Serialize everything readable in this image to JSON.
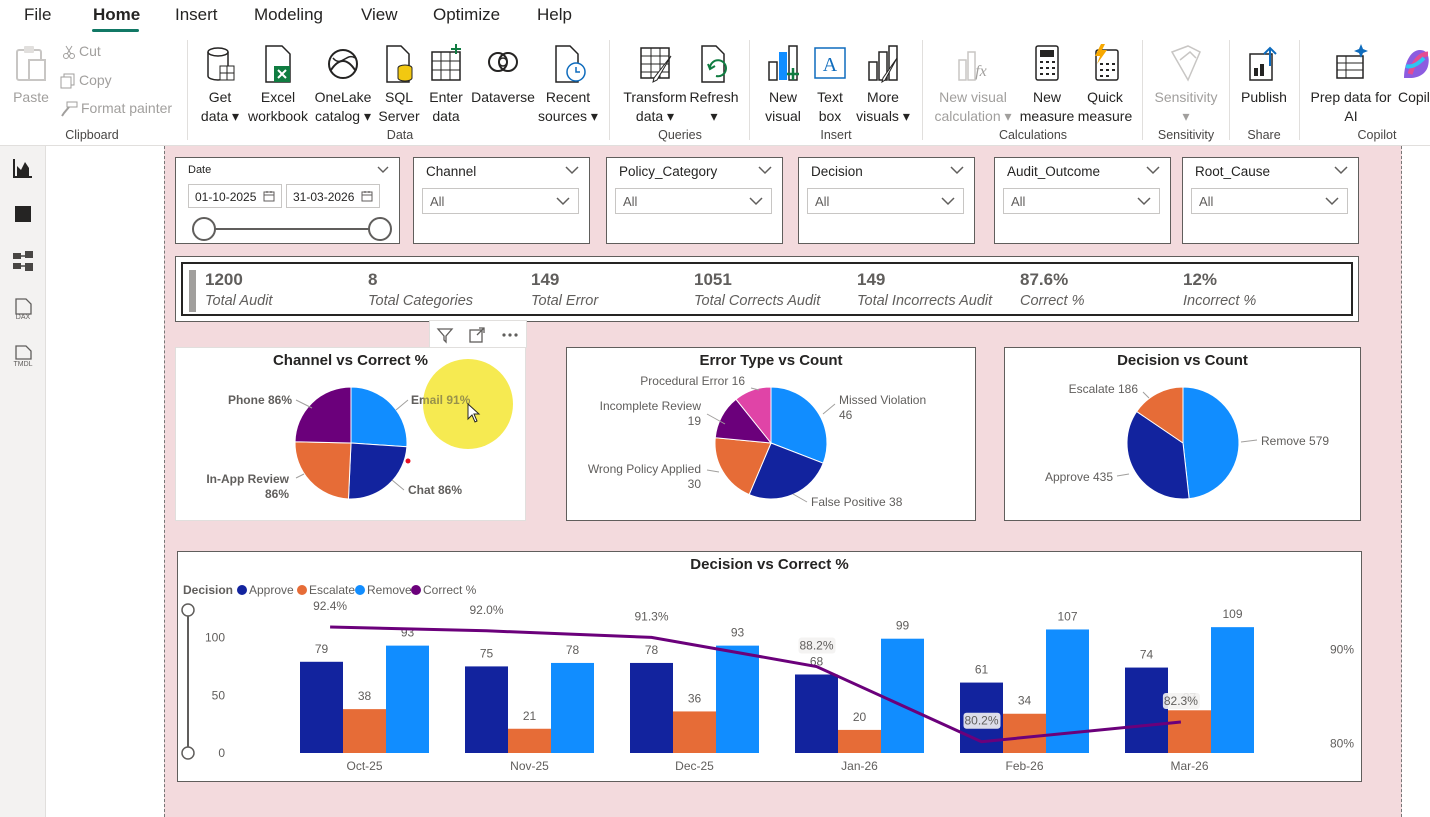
{
  "menu": {
    "items": [
      "File",
      "Home",
      "Insert",
      "Modeling",
      "View",
      "Optimize",
      "Help"
    ],
    "active": "Home"
  },
  "ribbon": {
    "clipboard": {
      "paste": "Paste",
      "cut": "Cut",
      "copy": "Copy",
      "format_painter": "Format painter",
      "group": "Clipboard"
    },
    "data": {
      "get_data": [
        "Get",
        "data"
      ],
      "excel": [
        "Excel",
        "workbook"
      ],
      "onelake": [
        "OneLake",
        "catalog"
      ],
      "sql": [
        "SQL",
        "Server"
      ],
      "enter": [
        "Enter",
        "data"
      ],
      "dataverse": "Dataverse",
      "recent": [
        "Recent",
        "sources"
      ],
      "group": "Data"
    },
    "queries": {
      "transform": [
        "Transform",
        "data"
      ],
      "refresh": "Refresh",
      "group": "Queries"
    },
    "insert": {
      "new_visual": [
        "New",
        "visual"
      ],
      "text_box": [
        "Text",
        "box"
      ],
      "more_visuals": [
        "More",
        "visuals"
      ],
      "group": "Insert"
    },
    "calculations": {
      "new_visual_calc": [
        "New visual",
        "calculation"
      ],
      "new_measure": [
        "New",
        "measure"
      ],
      "quick_measure": [
        "Quick",
        "measure"
      ],
      "group": "Calculations"
    },
    "sensitivity": {
      "label": "Sensitivity",
      "group": "Sensitivity"
    },
    "share": {
      "publish": "Publish",
      "group": "Share"
    },
    "copilot": {
      "prep": [
        "Prep data for",
        "AI"
      ],
      "copilot_label": "Copilo",
      "group": "Copilot"
    }
  },
  "rail": {
    "dax": "DAX",
    "tmdl": "TMDL"
  },
  "slicers": {
    "date": {
      "title": "Date",
      "start": "01-10-2025",
      "end": "31-03-2026"
    },
    "channel": {
      "title": "Channel",
      "value": "All"
    },
    "policy_category": {
      "title": "Policy_Category",
      "value": "All"
    },
    "decision": {
      "title": "Decision",
      "value": "All"
    },
    "audit_outcome": {
      "title": "Audit_Outcome",
      "value": "All"
    },
    "root_cause": {
      "title": "Root_Cause",
      "value": "All"
    }
  },
  "kpis": [
    {
      "value": "1200",
      "label": "Total Audit"
    },
    {
      "value": "8",
      "label": "Total Categories"
    },
    {
      "value": "149",
      "label": "Total Error"
    },
    {
      "value": "1051",
      "label": "Total Corrects Audit"
    },
    {
      "value": "149",
      "label": "Total Incorrects Audit"
    },
    {
      "value": "87.6%",
      "label": "Correct %"
    },
    {
      "value": "12%",
      "label": "Incorrect %"
    }
  ],
  "colors": {
    "approve": "#12239e",
    "escalate": "#e66c37",
    "remove": "#118dff",
    "correct": "#6b007b",
    "pink": "#e044a7",
    "canvas": "#f3dadd",
    "highlight": "#f5e633"
  },
  "chart_data": [
    {
      "type": "pie",
      "title": "Channel vs Correct %",
      "categories": [
        "Email",
        "Chat",
        "In-App Review",
        "Phone"
      ],
      "values": [
        91,
        86,
        86,
        86
      ],
      "labels": [
        "Email 91%",
        "Chat 86%",
        "In-App Review 86%",
        "Phone 86%"
      ]
    },
    {
      "type": "pie",
      "title": "Error Type vs Count",
      "categories": [
        "Missed Violation",
        "False Positive",
        "Wrong Policy Applied",
        "Incomplete Review",
        "Procedural Error"
      ],
      "values": [
        46,
        38,
        30,
        19,
        16
      ],
      "labels": [
        "Missed Violation 46",
        "False Positive 38",
        "Wrong Policy Applied 30",
        "Incomplete Review 19",
        "Procedural Error 16"
      ]
    },
    {
      "type": "pie",
      "title": "Decision vs Count",
      "categories": [
        "Remove",
        "Approve",
        "Escalate"
      ],
      "values": [
        579,
        435,
        186
      ],
      "labels": [
        "Remove 579",
        "Approve 435",
        "Escalate 186"
      ]
    },
    {
      "type": "bar",
      "title": "Decision vs Correct %",
      "legend_title": "Decision",
      "categories": [
        "Oct-25",
        "Nov-25",
        "Dec-25",
        "Jan-26",
        "Feb-26",
        "Mar-26"
      ],
      "series": [
        {
          "name": "Approve",
          "values": [
            79,
            75,
            78,
            68,
            61,
            74
          ]
        },
        {
          "name": "Escalate",
          "values": [
            38,
            21,
            36,
            20,
            34,
            37
          ]
        },
        {
          "name": "Remove",
          "values": [
            93,
            78,
            93,
            99,
            107,
            109
          ]
        }
      ],
      "line_series": {
        "name": "Correct %",
        "values": [
          92.4,
          92.0,
          91.3,
          88.2,
          80.2,
          82.3
        ],
        "labels": [
          "92.4%",
          "92.0%",
          "91.3%",
          "88.2%",
          "80.2%",
          "82.3%"
        ]
      },
      "ylim": [
        0,
        110
      ],
      "yticks": [
        "0",
        "50",
        "100"
      ],
      "y2lim": [
        79,
        94
      ],
      "y2ticks": [
        "80%",
        "90%"
      ]
    }
  ]
}
